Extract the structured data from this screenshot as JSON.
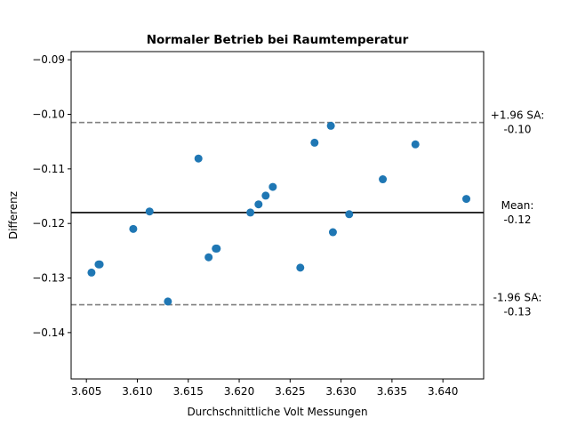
{
  "chart_data": {
    "type": "scatter",
    "title": "Normaler Betrieb bei Raumtemperatur",
    "xlabel": "Durchschnittliche Volt Messungen",
    "ylabel": "Differenz",
    "xlim": [
      3.6035,
      3.644
    ],
    "ylim": [
      -0.1485,
      -0.0885
    ],
    "x_ticks": [
      3.605,
      3.61,
      3.615,
      3.62,
      3.625,
      3.63,
      3.635,
      3.64
    ],
    "x_tick_labels": [
      "3.605",
      "3.610",
      "3.615",
      "3.620",
      "3.625",
      "3.630",
      "3.635",
      "3.640"
    ],
    "y_ticks": [
      -0.14,
      -0.13,
      -0.12,
      -0.11,
      -0.1,
      -0.09
    ],
    "y_tick_labels": [
      "−0.14",
      "−0.13",
      "−0.12",
      "−0.11",
      "−0.10",
      "−0.09"
    ],
    "grid": false,
    "point_color": "#1f77b4",
    "points": [
      {
        "x": 3.6055,
        "y": -0.129
      },
      {
        "x": 3.6062,
        "y": -0.1275
      },
      {
        "x": 3.6063,
        "y": -0.1275
      },
      {
        "x": 3.6096,
        "y": -0.121
      },
      {
        "x": 3.6112,
        "y": -0.1178
      },
      {
        "x": 3.613,
        "y": -0.1343
      },
      {
        "x": 3.616,
        "y": -0.1081
      },
      {
        "x": 3.617,
        "y": -0.1262
      },
      {
        "x": 3.6177,
        "y": -0.1246
      },
      {
        "x": 3.6178,
        "y": -0.1246
      },
      {
        "x": 3.6211,
        "y": -0.118
      },
      {
        "x": 3.6219,
        "y": -0.1165
      },
      {
        "x": 3.6226,
        "y": -0.1149
      },
      {
        "x": 3.6233,
        "y": -0.1133
      },
      {
        "x": 3.626,
        "y": -0.1281
      },
      {
        "x": 3.6274,
        "y": -0.1052
      },
      {
        "x": 3.629,
        "y": -0.1021
      },
      {
        "x": 3.6292,
        "y": -0.1216
      },
      {
        "x": 3.6308,
        "y": -0.1183
      },
      {
        "x": 3.6341,
        "y": -0.1119
      },
      {
        "x": 3.6373,
        "y": -0.1055
      },
      {
        "x": 3.6423,
        "y": -0.1155
      }
    ],
    "reference_lines": [
      {
        "name": "mean",
        "value": -0.118,
        "color": "#000000",
        "style": "solid",
        "label_line1": "Mean:",
        "label_line2": "-0.12"
      },
      {
        "name": "upper",
        "value": -0.1015,
        "color": "#808080",
        "style": "dashed",
        "label_line1": "+1.96 SA:",
        "label_line2": "-0.10"
      },
      {
        "name": "lower",
        "value": -0.1349,
        "color": "#808080",
        "style": "dashed",
        "label_line1": "-1.96 SA:",
        "label_line2": "-0.13"
      }
    ]
  }
}
